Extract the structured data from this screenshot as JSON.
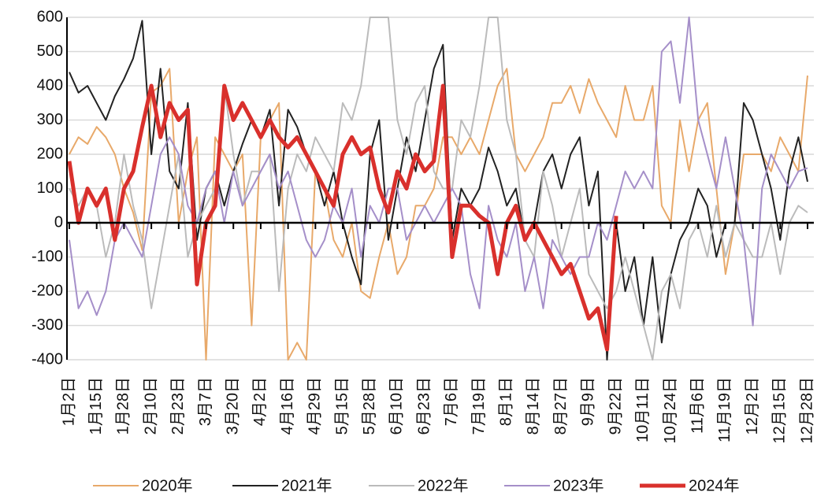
{
  "chart_data": {
    "type": "line",
    "categories": [
      "1月2日",
      null,
      null,
      "1月15日",
      null,
      null,
      "1月28日",
      null,
      null,
      "2月10日",
      null,
      null,
      "2月23日",
      null,
      null,
      "3月7日",
      null,
      null,
      "3月20日",
      null,
      null,
      "4月2日",
      null,
      null,
      "4月16日",
      null,
      null,
      "4月29日",
      null,
      null,
      "5月15日",
      null,
      null,
      "5月28日",
      null,
      null,
      "6月10日",
      null,
      null,
      "6月23日",
      null,
      null,
      "7月6日",
      null,
      null,
      "7月19日",
      null,
      null,
      "8月1日",
      null,
      null,
      "8月14日",
      null,
      null,
      "8月27日",
      null,
      null,
      "9月9日",
      null,
      null,
      "9月22日",
      null,
      null,
      "10月11日",
      null,
      null,
      "10月24日",
      null,
      null,
      "11月6日",
      null,
      null,
      "11月19日",
      null,
      null,
      "12月2日",
      null,
      null,
      "12月15日",
      null,
      null,
      "12月28日"
    ],
    "series": [
      {
        "name": "2020年",
        "color": "#e8a96a",
        "width": 2,
        "values": [
          200,
          250,
          230,
          280,
          250,
          200,
          100,
          30,
          -80,
          380,
          400,
          450,
          0,
          150,
          250,
          -400,
          250,
          200,
          150,
          200,
          -300,
          250,
          300,
          350,
          -400,
          -350,
          -400,
          150,
          100,
          -50,
          -100,
          0,
          -200,
          -220,
          -100,
          0,
          -150,
          -100,
          50,
          50,
          100,
          250,
          250,
          200,
          250,
          200,
          300,
          400,
          450,
          200,
          150,
          200,
          250,
          350,
          350,
          400,
          320,
          420,
          350,
          300,
          250,
          400,
          300,
          300,
          400,
          50,
          0,
          300,
          150,
          300,
          350,
          100,
          -150,
          0,
          200,
          200,
          200,
          150,
          250,
          200,
          150,
          430
        ]
      },
      {
        "name": "2021年",
        "color": "#222222",
        "width": 2,
        "values": [
          440,
          380,
          400,
          350,
          300,
          370,
          420,
          480,
          590,
          200,
          450,
          150,
          100,
          350,
          -50,
          100,
          150,
          50,
          150,
          230,
          300,
          250,
          330,
          50,
          330,
          280,
          200,
          150,
          50,
          150,
          0,
          -100,
          -180,
          200,
          300,
          -50,
          100,
          250,
          150,
          300,
          450,
          520,
          -50,
          100,
          50,
          100,
          220,
          150,
          50,
          100,
          -50,
          0,
          150,
          200,
          100,
          200,
          250,
          50,
          150,
          -400,
          0,
          -200,
          -100,
          -300,
          -100,
          -350,
          -150,
          -50,
          0,
          100,
          50,
          -100,
          0,
          0,
          350,
          300,
          200,
          100,
          -50,
          150,
          250,
          120
        ]
      },
      {
        "name": "2022年",
        "color": "#bbbbbb",
        "width": 2,
        "values": [
          100,
          50,
          100,
          50,
          -100,
          0,
          200,
          50,
          -50,
          -250,
          -100,
          50,
          200,
          -100,
          0,
          50,
          100,
          400,
          200,
          50,
          150,
          150,
          200,
          -200,
          100,
          200,
          150,
          250,
          200,
          150,
          350,
          300,
          400,
          600,
          600,
          600,
          300,
          200,
          350,
          400,
          150,
          100,
          100,
          300,
          250,
          400,
          600,
          600,
          300,
          200,
          -50,
          -100,
          150,
          50,
          -100,
          0,
          100,
          -150,
          -200,
          -250,
          -200,
          -100,
          -200,
          -300,
          -400,
          -200,
          -150,
          -250,
          -50,
          0,
          -100,
          50,
          -100,
          0,
          -50,
          -100,
          -100,
          0,
          -150,
          0,
          50,
          30
        ]
      },
      {
        "name": "2023年",
        "color": "#a58fc9",
        "width": 2,
        "values": [
          -50,
          -250,
          -200,
          -270,
          -200,
          -50,
          0,
          -50,
          -100,
          50,
          200,
          250,
          200,
          50,
          0,
          100,
          150,
          0,
          150,
          50,
          100,
          150,
          200,
          100,
          150,
          50,
          -50,
          -100,
          -50,
          50,
          0,
          100,
          -100,
          50,
          0,
          100,
          100,
          -50,
          0,
          50,
          0,
          50,
          100,
          50,
          -150,
          -250,
          50,
          -50,
          -100,
          0,
          -200,
          -100,
          -250,
          -50,
          -100,
          -150,
          -100,
          -100,
          0,
          -50,
          50,
          150,
          100,
          150,
          100,
          500,
          530,
          350,
          600,
          300,
          200,
          100,
          250,
          100,
          -50,
          -300,
          100,
          200,
          150,
          100,
          150,
          160
        ]
      },
      {
        "name": "2024年",
        "color": "#d9302c",
        "width": 5,
        "values": [
          180,
          0,
          100,
          50,
          100,
          -50,
          100,
          150,
          280,
          400,
          250,
          350,
          300,
          330,
          -180,
          0,
          50,
          400,
          300,
          350,
          300,
          250,
          300,
          250,
          220,
          250,
          200,
          150,
          100,
          50,
          200,
          250,
          200,
          220,
          100,
          30,
          150,
          100,
          200,
          150,
          180,
          400,
          -100,
          50,
          50,
          20,
          0,
          -150,
          0,
          50,
          -50,
          0,
          -50,
          -100,
          -150,
          -120,
          -200,
          -280,
          -250,
          -370,
          20,
          null,
          null,
          null,
          null,
          null,
          null,
          null,
          null,
          null,
          null,
          null,
          null,
          null,
          null,
          null,
          null,
          null,
          null,
          null,
          null,
          null
        ]
      }
    ],
    "ylim": [
      -400,
      600
    ],
    "yticks": [
      -400,
      -300,
      -200,
      -100,
      0,
      100,
      200,
      300,
      400,
      500,
      600
    ],
    "grid": true,
    "legend": "bottom"
  }
}
